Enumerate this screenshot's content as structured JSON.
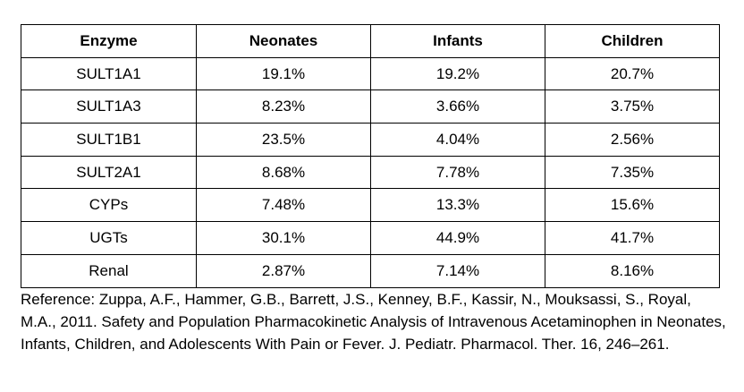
{
  "table": {
    "headers": [
      "Enzyme",
      "Neonates",
      "Infants",
      "Children"
    ],
    "rows": [
      [
        "SULT1A1",
        "19.1%",
        "19.2%",
        "20.7%"
      ],
      [
        "SULT1A3",
        "8.23%",
        "3.66%",
        "3.75%"
      ],
      [
        "SULT1B1",
        "23.5%",
        "4.04%",
        "2.56%"
      ],
      [
        "SULT2A1",
        "8.68%",
        "7.78%",
        "7.35%"
      ],
      [
        "CYPs",
        "7.48%",
        "13.3%",
        "15.6%"
      ],
      [
        "UGTs",
        "30.1%",
        "44.9%",
        "41.7%"
      ],
      [
        "Renal",
        "2.87%",
        "7.14%",
        "8.16%"
      ]
    ]
  },
  "reference": "Reference: Zuppa, A.F., Hammer, G.B., Barrett, J.S., Kenney, B.F., Kassir, N., Mouksassi, S., Royal, M.A., 2011. Safety and Population Pharmacokinetic Analysis of Intravenous Acetaminophen in Neonates, Infants, Children, and Adolescents With Pain or Fever. J. Pediatr. Pharmacol. Ther. 16, 246–261."
}
